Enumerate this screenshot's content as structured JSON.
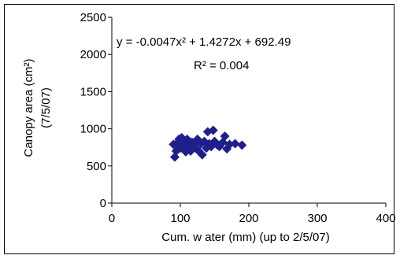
{
  "chart_data": {
    "type": "scatter",
    "xlabel": "Cum. w ater (mm) (up to 2/5/07)",
    "ylabel_line1": "Canopy area (cm²)",
    "ylabel_line2": "(7/5/07)",
    "xlim": [
      0,
      400
    ],
    "ylim": [
      0,
      2500
    ],
    "x_ticks": [
      0,
      100,
      200,
      300,
      400
    ],
    "y_ticks": [
      0,
      500,
      1000,
      1500,
      2000,
      2500
    ],
    "grid": false,
    "legend": "none",
    "marker": "diamond",
    "marker_color": "#1f1f8c",
    "trendline_color": "#000000",
    "points": [
      {
        "x": 90,
        "y": 790
      },
      {
        "x": 92,
        "y": 620
      },
      {
        "x": 94,
        "y": 700
      },
      {
        "x": 96,
        "y": 810
      },
      {
        "x": 98,
        "y": 860
      },
      {
        "x": 100,
        "y": 740
      },
      {
        "x": 102,
        "y": 880
      },
      {
        "x": 104,
        "y": 780
      },
      {
        "x": 106,
        "y": 830
      },
      {
        "x": 108,
        "y": 690
      },
      {
        "x": 110,
        "y": 860
      },
      {
        "x": 112,
        "y": 760
      },
      {
        "x": 115,
        "y": 700
      },
      {
        "x": 117,
        "y": 820
      },
      {
        "x": 120,
        "y": 780
      },
      {
        "x": 122,
        "y": 740
      },
      {
        "x": 125,
        "y": 860
      },
      {
        "x": 127,
        "y": 700
      },
      {
        "x": 130,
        "y": 800
      },
      {
        "x": 132,
        "y": 650
      },
      {
        "x": 135,
        "y": 830
      },
      {
        "x": 138,
        "y": 740
      },
      {
        "x": 140,
        "y": 960
      },
      {
        "x": 142,
        "y": 800
      },
      {
        "x": 145,
        "y": 760
      },
      {
        "x": 148,
        "y": 980
      },
      {
        "x": 150,
        "y": 830
      },
      {
        "x": 153,
        "y": 790
      },
      {
        "x": 157,
        "y": 760
      },
      {
        "x": 162,
        "y": 820
      },
      {
        "x": 165,
        "y": 900
      },
      {
        "x": 168,
        "y": 730
      },
      {
        "x": 172,
        "y": 790
      },
      {
        "x": 180,
        "y": 800
      },
      {
        "x": 190,
        "y": 780
      }
    ],
    "trendline": {
      "a": -0.0047,
      "b": 1.4272,
      "c": 692.49,
      "x_start": 90,
      "x_end": 194
    },
    "equation_text": "y = -0.0047x² + 1.4272x + 692.49",
    "r2_text": "R² = 0.004"
  }
}
